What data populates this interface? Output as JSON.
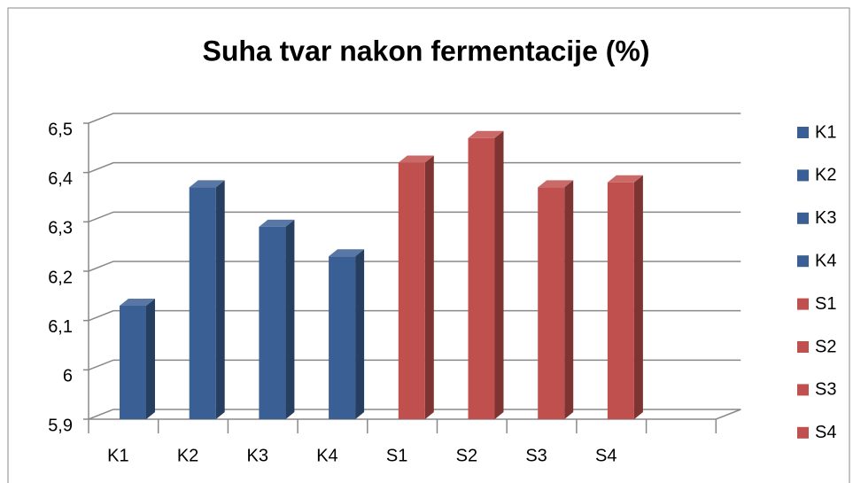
{
  "chart_data": {
    "type": "bar3d",
    "title": "Suha tvar nakon fermentacije (%)",
    "categories": [
      "K1",
      "K2",
      "K3",
      "K4",
      "S1",
      "S2",
      "S3",
      "S4",
      null
    ],
    "series": [
      {
        "name": "K1",
        "color": "#3a5f94",
        "values": [
          6.13,
          null,
          null,
          null,
          null,
          null,
          null,
          null,
          null
        ]
      },
      {
        "name": "K2",
        "color": "#3a5f94",
        "values": [
          null,
          6.37,
          null,
          null,
          null,
          null,
          null,
          null,
          null
        ]
      },
      {
        "name": "K3",
        "color": "#3a5f94",
        "values": [
          null,
          null,
          6.29,
          null,
          null,
          null,
          null,
          null,
          null
        ]
      },
      {
        "name": "K4",
        "color": "#3a5f94",
        "values": [
          null,
          null,
          null,
          6.23,
          null,
          null,
          null,
          null,
          null
        ]
      },
      {
        "name": "S1",
        "color": "#c0504d",
        "values": [
          null,
          null,
          null,
          null,
          6.42,
          null,
          null,
          null,
          null
        ]
      },
      {
        "name": "S2",
        "color": "#c0504d",
        "values": [
          null,
          null,
          null,
          null,
          null,
          6.47,
          null,
          null,
          null
        ]
      },
      {
        "name": "S3",
        "color": "#c0504d",
        "values": [
          null,
          null,
          null,
          null,
          null,
          null,
          6.37,
          null,
          null
        ]
      },
      {
        "name": "S4",
        "color": "#c0504d",
        "values": [
          null,
          null,
          null,
          null,
          null,
          null,
          null,
          6.38,
          null
        ]
      }
    ],
    "ylim": [
      5.9,
      6.5
    ],
    "yticks": [
      {
        "value": 5.9,
        "label": "5,9"
      },
      6,
      {
        "value": 6.1,
        "label": "6,1"
      },
      {
        "value": 6.2,
        "label": "6,2"
      },
      {
        "value": 6.3,
        "label": "6,3"
      },
      {
        "value": 6.4,
        "label": "6,4"
      },
      {
        "value": 6.5,
        "label": "6,5"
      }
    ],
    "grid": true,
    "legend": "right"
  }
}
